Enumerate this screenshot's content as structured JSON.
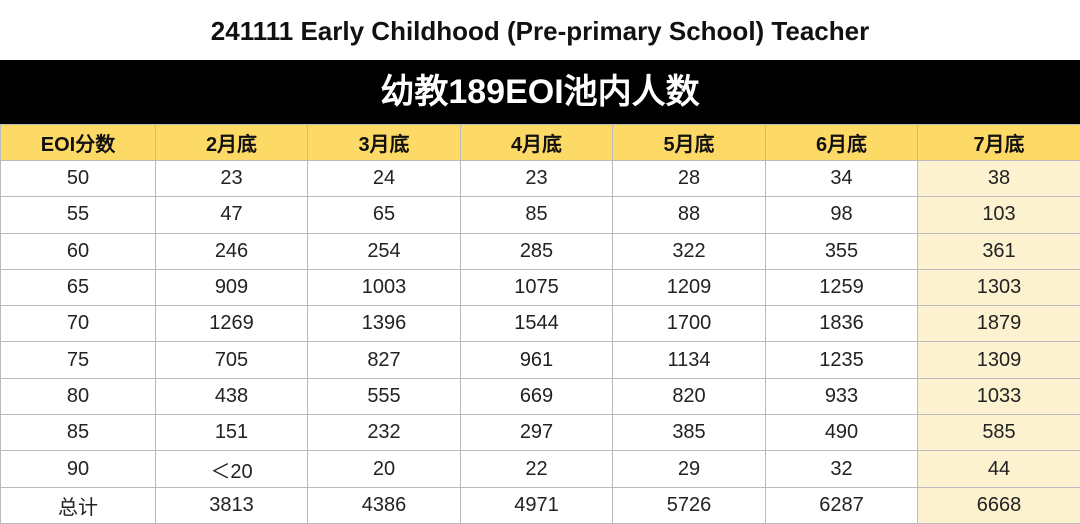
{
  "title": "241111 Early Childhood (Pre-primary School) Teacher",
  "banner": "幼教189EOI池内人数",
  "table": {
    "header": [
      "EOI分数",
      "2月底",
      "3月底",
      "4月底",
      "5月底",
      "6月底",
      "7月底"
    ],
    "rows": [
      [
        "50",
        23,
        24,
        23,
        28,
        34,
        38
      ],
      [
        "55",
        47,
        65,
        85,
        88,
        98,
        103
      ],
      [
        "60",
        246,
        254,
        285,
        322,
        355,
        361
      ],
      [
        "65",
        909,
        1003,
        1075,
        1209,
        1259,
        1303
      ],
      [
        "70",
        1269,
        1396,
        1544,
        1700,
        1836,
        1879
      ],
      [
        "75",
        705,
        827,
        961,
        1134,
        1235,
        1309
      ],
      [
        "80",
        438,
        555,
        669,
        820,
        933,
        1033
      ],
      [
        "85",
        151,
        232,
        297,
        385,
        490,
        585
      ],
      [
        "90",
        "＜20",
        20,
        22,
        29,
        32,
        44
      ],
      [
        "总计",
        3813,
        4386,
        4971,
        5726,
        6287,
        6668
      ]
    ]
  }
}
